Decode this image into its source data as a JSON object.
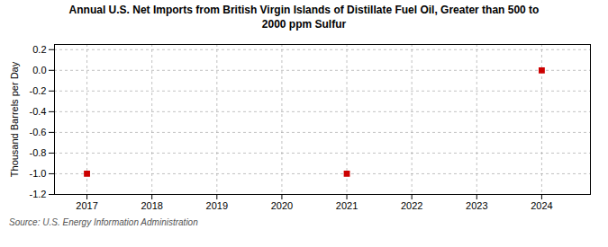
{
  "chart_data": {
    "type": "scatter",
    "title": "Annual U.S. Net Imports from British Virgin Islands of Distillate Fuel Oil, Greater than 500 to\n2000 ppm Sulfur",
    "ylabel": "Thousand Barrels per Day",
    "annotation": "Source: U.S. Energy Information Administration",
    "x": [
      2017,
      2021,
      2024
    ],
    "values": [
      -1.0,
      -1.0,
      0.0
    ],
    "color": "#cc0000",
    "marker": "square",
    "xlim": [
      2016.5,
      2024.75
    ],
    "xticks": [
      2017,
      2018,
      2019,
      2020,
      2021,
      2022,
      2023,
      2024
    ],
    "ylim": [
      -1.2,
      0.25
    ],
    "yticks": [
      0.2,
      {
        "value": 0.0,
        "label": "0.0"
      },
      -0.2,
      -0.4,
      -0.6,
      -0.8,
      {
        "value": -1.0,
        "label": "-1.0"
      },
      -1.2
    ],
    "grid": true
  }
}
